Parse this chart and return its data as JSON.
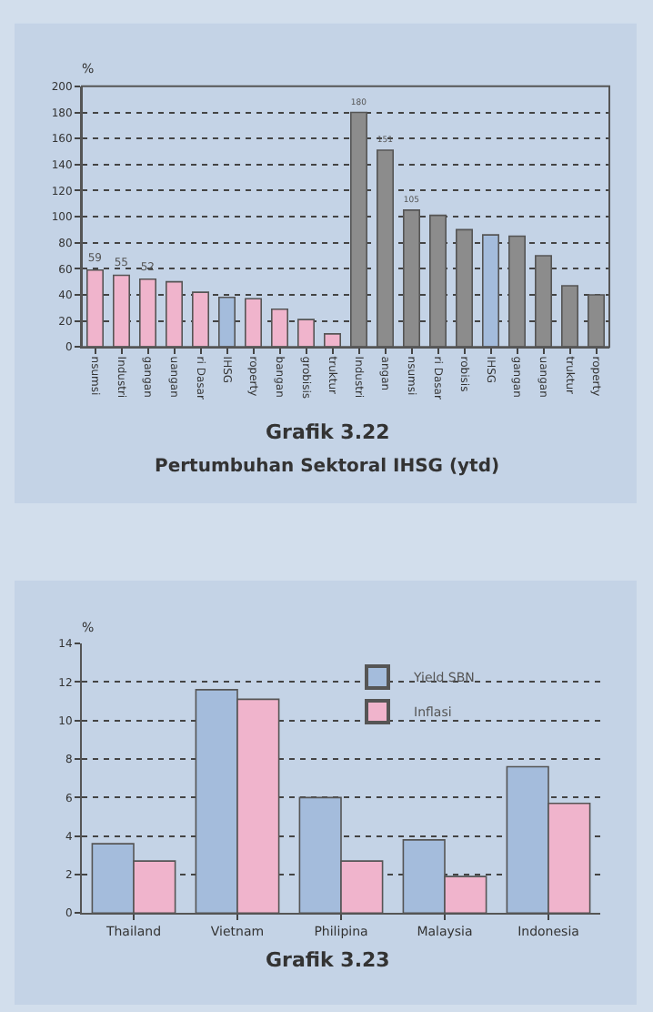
{
  "chart_data": [
    {
      "type": "bar",
      "title": "Grafik 3.22",
      "subtitle": "Pertumbuhan Sektoral IHSG (ytd)",
      "ylabel": "%",
      "categories": [
        "nsumsi",
        "Industri",
        "gangan",
        "uangan",
        "ri Dasar",
        "IHSG",
        "roperty",
        "bangan",
        "grobisis",
        "truktur",
        "Industri",
        "angan",
        "nsumsi",
        "ri Dasar",
        "robisis",
        "IHSG",
        "gangan",
        "uangan",
        "truktur",
        "roperty"
      ],
      "values": [
        59,
        55,
        52,
        50,
        42,
        38,
        37,
        29,
        21,
        10,
        180,
        151,
        105,
        101,
        90,
        86,
        85,
        70,
        47,
        40
      ],
      "value_labels": [
        "59",
        "55",
        "52",
        null,
        null,
        null,
        null,
        null,
        null,
        null,
        "180",
        "151",
        "105",
        null,
        null,
        null,
        null,
        null,
        null,
        null
      ],
      "colors": [
        "#f0b4cc",
        "#f0b4cc",
        "#f0b4cc",
        "#f0b4cc",
        "#f0b4cc",
        "#a4bcdc",
        "#f0b4cc",
        "#f0b4cc",
        "#f0b4cc",
        "#f0b4cc",
        "#8c8c8c",
        "#8c8c8c",
        "#8c8c8c",
        "#8c8c8c",
        "#8c8c8c",
        "#a4bcdc",
        "#8c8c8c",
        "#8c8c8c",
        "#8c8c8c",
        "#8c8c8c"
      ],
      "ylim": [
        0,
        200
      ],
      "yticks": [
        0,
        20,
        40,
        60,
        80,
        100,
        120,
        140,
        160,
        180,
        200
      ],
      "grid": "y",
      "legend": false
    },
    {
      "type": "bar",
      "title": "Grafik 3.23",
      "ylabel": "%",
      "categories": [
        "Thailand",
        "Vietnam",
        "Philipina",
        "Malaysia",
        "Indonesia"
      ],
      "series": [
        {
          "name": "Yield SBN",
          "color": "#a4bcdc",
          "values": [
            3.6,
            11.6,
            6.0,
            3.8,
            7.6
          ]
        },
        {
          "name": "Inflasi",
          "color": "#f0b4cc",
          "values": [
            2.7,
            11.1,
            2.7,
            1.9,
            5.7
          ]
        }
      ],
      "ylim": [
        0,
        14
      ],
      "yticks": [
        0,
        2,
        4,
        6,
        8,
        10,
        12,
        14
      ],
      "grid": "y",
      "legend": "top"
    }
  ]
}
